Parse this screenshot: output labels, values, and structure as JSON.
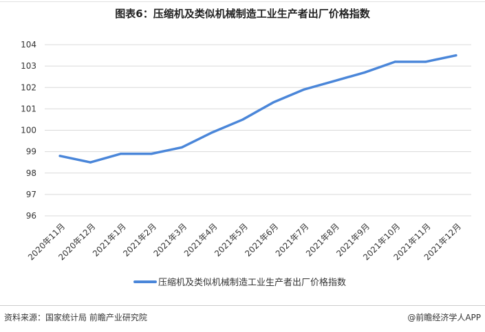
{
  "title": "图表6：压缩机及类似机械制造工业生产者出厂价格指数",
  "chart_data": {
    "type": "line",
    "categories": [
      "2020年11月",
      "2020年12月",
      "2021年1月",
      "2021年2月",
      "2021年3月",
      "2021年4月",
      "2021年5月",
      "2021年6月",
      "2021年7月",
      "2021年8月",
      "2021年9月",
      "2021年10月",
      "2021年11月",
      "2021年12月"
    ],
    "series": [
      {
        "name": "压缩机及类似机械制造工业生产者出厂价格指数",
        "values": [
          98.8,
          98.5,
          98.9,
          98.9,
          99.2,
          99.9,
          100.5,
          101.3,
          101.9,
          102.3,
          102.7,
          103.2,
          103.2,
          103.5
        ],
        "color": "#4a86d9"
      }
    ],
    "ylim": [
      96,
      104
    ],
    "yticks": [
      96,
      97,
      98,
      99,
      100,
      101,
      102,
      103,
      104
    ],
    "grid": true,
    "legend": "bottom-center",
    "xlabel": "",
    "ylabel": ""
  },
  "footer": {
    "source": "资料来源：国家统计局 前瞻产业研究院",
    "brand": "@前瞻经济学人APP"
  }
}
